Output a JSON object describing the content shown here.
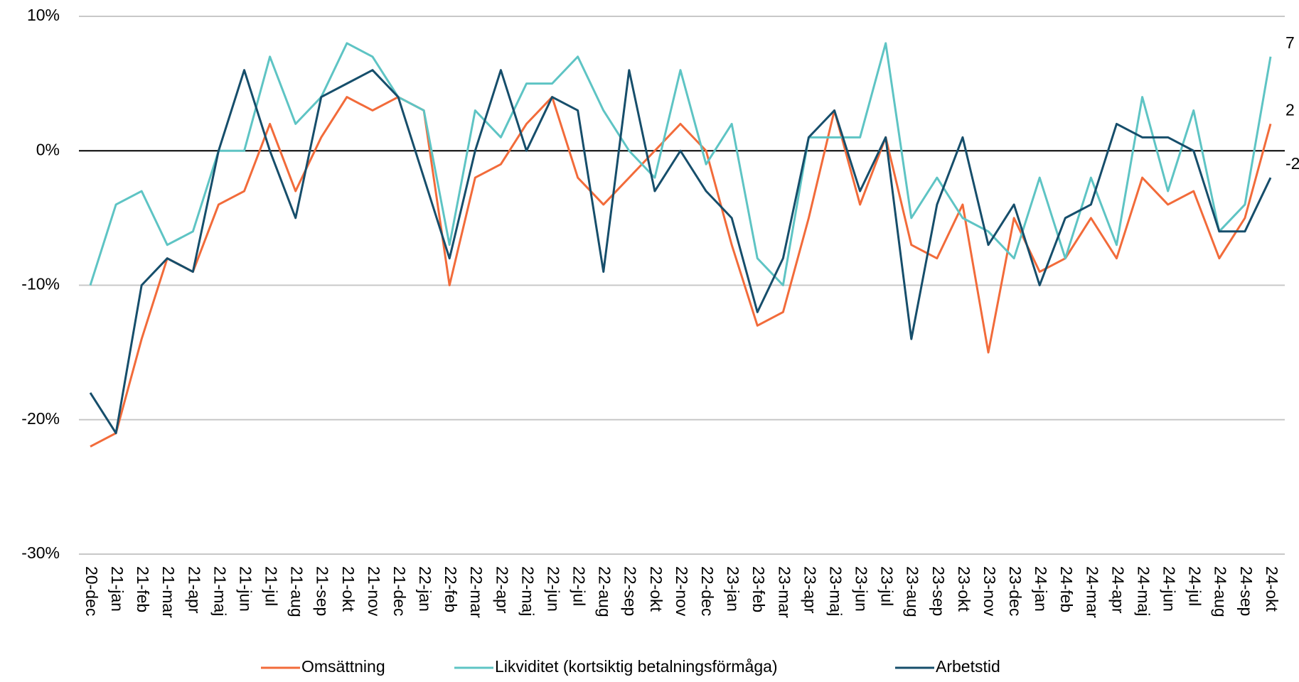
{
  "chart_data": {
    "type": "line",
    "categories": [
      "20-dec",
      "21-jan",
      "21-feb",
      "21-mar",
      "21-apr",
      "21-maj",
      "21-jun",
      "21-jul",
      "21-aug",
      "21-sep",
      "21-okt",
      "21-nov",
      "21-dec",
      "22-jan",
      "22-feb",
      "22-mar",
      "22-apr",
      "22-maj",
      "22-jun",
      "22-jul",
      "22-aug",
      "22-sep",
      "22-okt",
      "22-nov",
      "22-dec",
      "23-jan",
      "23-feb",
      "23-mar",
      "23-apr",
      "23-maj",
      "23-jun",
      "23-jul",
      "23-aug",
      "23-sep",
      "23-okt",
      "23-nov",
      "23-dec",
      "24-jan",
      "24-feb",
      "24-mar",
      "24-apr",
      "24-maj",
      "24-jun",
      "24-jul",
      "24-aug",
      "24-sep",
      "24-okt"
    ],
    "series": [
      {
        "name": "Omsättning",
        "color": "#f26b3a",
        "values": [
          -22,
          -21,
          -14,
          -8,
          -9,
          -4,
          -3,
          2,
          -3,
          1,
          4,
          3,
          4,
          3,
          -10,
          -2,
          -1,
          2,
          4,
          -2,
          -4,
          -2,
          0,
          2,
          0,
          -7,
          -13,
          -12,
          -5,
          3,
          -4,
          1,
          -7,
          -8,
          -4,
          -15,
          -5,
          -9,
          -8,
          -5,
          -8,
          -2,
          -4,
          -3,
          -8,
          -5,
          2
        ]
      },
      {
        "name": "Likviditet (kortsiktig betalningsförmåga)",
        "color": "#5ec4c4",
        "values": [
          -10,
          -4,
          -3,
          -7,
          -6,
          0,
          0,
          7,
          2,
          4,
          8,
          7,
          4,
          3,
          -7,
          3,
          1,
          5,
          5,
          7,
          3,
          0,
          -2,
          6,
          -1,
          2,
          -8,
          -10,
          1,
          1,
          1,
          8,
          -5,
          -2,
          -5,
          -6,
          -8,
          -2,
          -8,
          -2,
          -7,
          4,
          -3,
          3,
          -6,
          -4,
          7
        ]
      },
      {
        "name": "Arbetstid",
        "color": "#164e6b",
        "values": [
          -18,
          -21,
          -10,
          -8,
          -9,
          0,
          6,
          0,
          -5,
          4,
          5,
          6,
          4,
          -2,
          -8,
          0,
          6,
          0,
          4,
          3,
          -9,
          6,
          -3,
          0,
          -3,
          -5,
          -12,
          -8,
          1,
          3,
          -3,
          1,
          -14,
          -4,
          1,
          -7,
          -4,
          -10,
          -5,
          -4,
          2,
          1,
          1,
          0,
          -6,
          -6,
          -2
        ]
      }
    ],
    "ylim": [
      -30,
      10
    ],
    "yticks": [
      {
        "value": -30,
        "label": "-30%"
      },
      {
        "value": -20,
        "label": "-20%"
      },
      {
        "value": -10,
        "label": "-10%"
      },
      {
        "value": 0,
        "label": "0%"
      },
      {
        "value": 10,
        "label": "10%"
      }
    ],
    "grid": true,
    "data_labels": "last",
    "legend": "bottom"
  }
}
